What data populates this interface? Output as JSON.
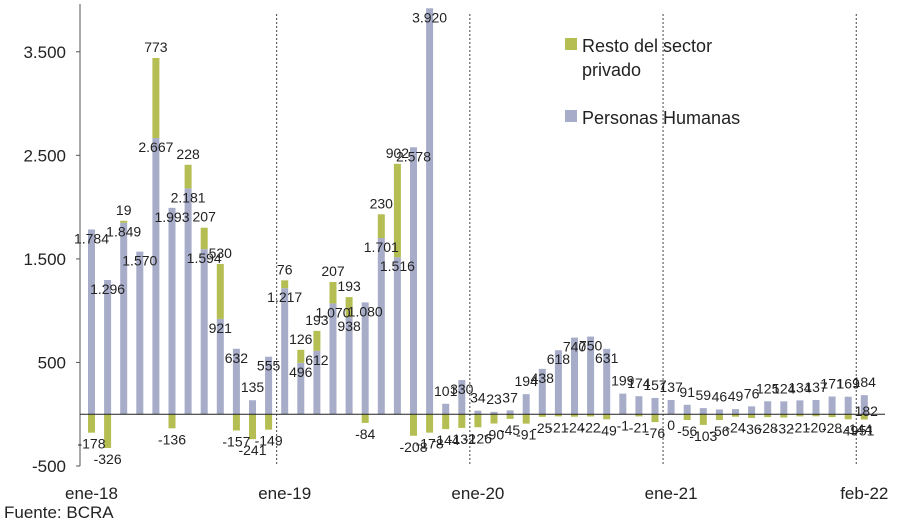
{
  "source": "Fuente: BCRA",
  "colors": {
    "personas": "#a7adc9",
    "resto": "#b5be52",
    "zero_line": "#222222",
    "divider": "#444444"
  },
  "chart_data": {
    "type": "bar",
    "stacked": true,
    "ylim": [
      -500,
      4000
    ],
    "yticks": [
      -500,
      500,
      1500,
      2500,
      3500
    ],
    "ytick_labels": [
      "-500",
      "500",
      "1.500",
      "2.500",
      "3.500"
    ],
    "x_labels": [
      {
        "index": 0,
        "text": "ene-18"
      },
      {
        "index": 12,
        "text": "ene-19"
      },
      {
        "index": 24,
        "text": "ene-20"
      },
      {
        "index": 36,
        "text": "ene-21"
      },
      {
        "index": 48,
        "text": "feb-22"
      }
    ],
    "dividers_after_index": [
      11.5,
      23.5,
      35.5,
      47.5
    ],
    "legend_position": "top-right",
    "series": [
      {
        "name": "Personas Humanas",
        "color_key": "personas",
        "values": [
          1784,
          1296,
          1849,
          1570,
          2667,
          1993,
          2181,
          1594,
          921,
          632,
          135,
          555,
          1217,
          496,
          612,
          1070,
          938,
          1080,
          1701,
          1516,
          2578,
          3920,
          101,
          330,
          34,
          23,
          37,
          194,
          438,
          618,
          740,
          750,
          631,
          199,
          174,
          157,
          137,
          91,
          59,
          46,
          49,
          76,
          125,
          124,
          134,
          137,
          171,
          169,
          184
        ],
        "labels": [
          "1.784",
          "1.296",
          "1.849",
          "1.570",
          "2.667",
          "1.993",
          "2.181",
          "1.594",
          "921",
          "632",
          "135",
          "555",
          "1.217",
          "496",
          "612",
          "1.070",
          "938",
          "1.080",
          "1.701",
          "1.516",
          "2.578",
          "3.920",
          "101",
          "330",
          "34",
          "23",
          "37",
          "194",
          "438",
          "618",
          "740",
          "750",
          "631",
          "199",
          "174",
          "157",
          "137",
          "91",
          "59",
          "46",
          "49",
          "76",
          "125",
          "124",
          "134",
          "137",
          "171",
          "169",
          "184"
        ]
      },
      {
        "name": "Resto del sector privado",
        "color_key": "resto",
        "values": [
          -178,
          -326,
          19,
          -5,
          773,
          -136,
          228,
          207,
          530,
          -157,
          -241,
          -149,
          76,
          126,
          193,
          207,
          193,
          -84,
          230,
          902,
          -208,
          -178,
          -144,
          -132,
          -126,
          -90,
          -45,
          -91,
          -25,
          -21,
          -24,
          -22,
          -49,
          -1,
          -21,
          -76,
          0,
          -56,
          -103,
          -56,
          -24,
          -36,
          -28,
          -32,
          -21,
          -20,
          -28,
          -49,
          -51
        ],
        "labels": [
          "-178",
          "-326",
          "19",
          "",
          "773",
          "-136",
          "228",
          "207",
          "530",
          "-157",
          "-241",
          "-149",
          "76",
          "126",
          "193",
          "207",
          "193",
          "-84",
          "230",
          "902",
          "-208",
          "-178",
          "-144",
          "-132",
          "-126",
          "-90",
          "-45",
          "-91",
          "-25",
          "-21",
          "-24",
          "-22",
          "-49",
          "-1",
          "-21",
          "-76",
          "0",
          "-56",
          "-103",
          "-56",
          "-24",
          "-36",
          "-28",
          "-32",
          "-21",
          "-20",
          "-28",
          "-49",
          "-51"
        ]
      }
    ]
  },
  "extra_labels": [
    "182",
    "-144"
  ]
}
